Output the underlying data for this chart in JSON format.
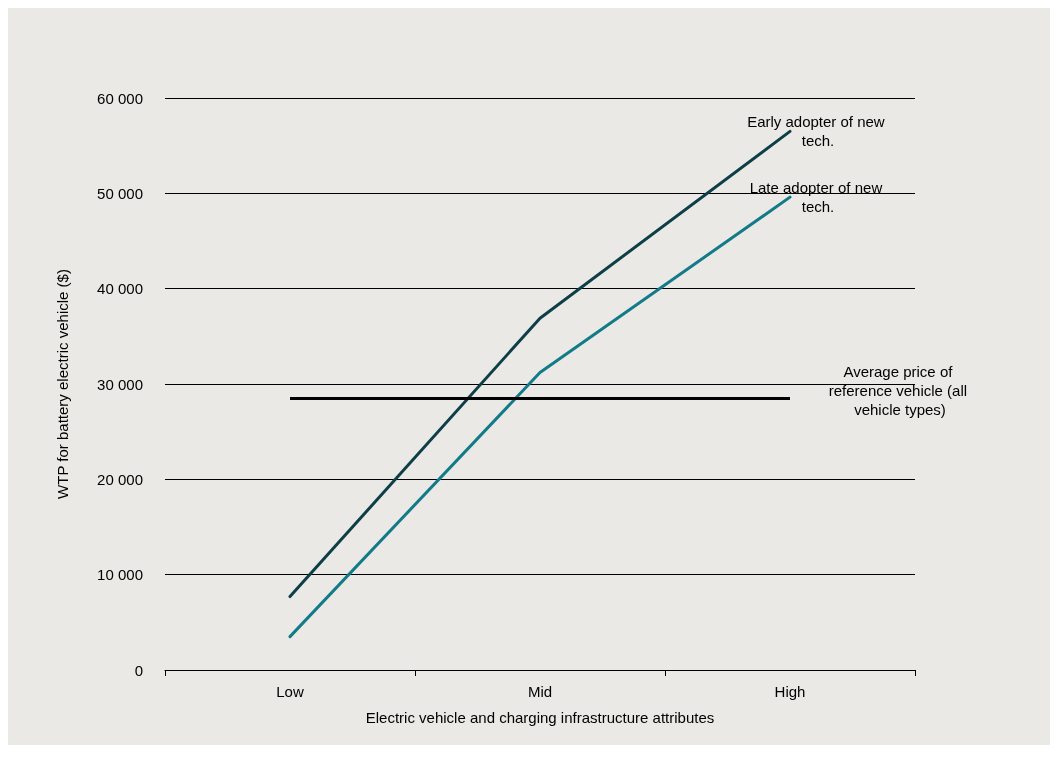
{
  "chart_data": {
    "type": "line",
    "xlabel": "Electric vehicle and charging infrastructure attributes",
    "ylabel": "WTP for battery electric vehicle ($)",
    "categories": [
      "Low",
      "Mid",
      "High"
    ],
    "series": [
      {
        "name": "Early adopter of new tech.",
        "color": "#0d3f47",
        "values": [
          7700,
          36900,
          56500
        ]
      },
      {
        "name": "Late adopter of new tech.",
        "color": "#127a89",
        "values": [
          3500,
          31200,
          49600
        ]
      }
    ],
    "ref_lines": [
      {
        "axis": "y",
        "value": 28500,
        "label": "Average price of reference vehicle (all vehicle types)",
        "color": "#000000"
      }
    ],
    "ylim": [
      0,
      60000
    ],
    "yticks": [
      {
        "value": 0,
        "label": "0"
      },
      {
        "value": 10000,
        "label": "10 000"
      },
      {
        "value": 20000,
        "label": "20 000"
      },
      {
        "value": 30000,
        "label": "30 000"
      },
      {
        "value": 40000,
        "label": "40 000"
      },
      {
        "value": 50000,
        "label": "50 000"
      },
      {
        "value": 60000,
        "label": "60 000"
      }
    ],
    "grid": "y",
    "marker": "none",
    "line_style": "solid",
    "legend": false
  }
}
